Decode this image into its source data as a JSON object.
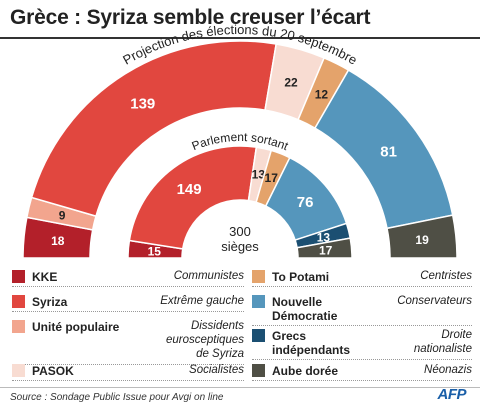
{
  "title": "Grèce : Syriza semble creuser l’écart",
  "source": "Source : Sondage Public Issue pour Avgi on line",
  "logo": "AFP",
  "colors": {
    "KKE": "#b3202a",
    "Syriza": "#e1473f",
    "Unite": "#f2a58e",
    "PASOK": "#f8dcd2",
    "ToPotami": "#e4a36b",
    "ND": "#5596bc",
    "Grecs": "#1b4f72",
    "Aube": "#4f4f45"
  },
  "chart_data": [
    {
      "type": "parliament",
      "title": "Projection des élections du 20 septembre",
      "seats_total": 300,
      "series": [
        {
          "party": "KKE",
          "value": 18,
          "color_key": "KKE"
        },
        {
          "party": "Unité populaire",
          "value": 9,
          "color_key": "Unite"
        },
        {
          "party": "Syriza",
          "value": 139,
          "color_key": "Syriza"
        },
        {
          "party": "PASOK",
          "value": 22,
          "color_key": "PASOK"
        },
        {
          "party": "To Potami",
          "value": 12,
          "color_key": "ToPotami"
        },
        {
          "party": "Nouvelle Démocratie",
          "value": 81,
          "color_key": "ND"
        },
        {
          "party": "Aube dorée",
          "value": 19,
          "color_key": "Aube"
        }
      ]
    },
    {
      "type": "parliament",
      "title": "Parlement sortant",
      "seats_total": 300,
      "center_value": "300",
      "center_label": "sièges",
      "series": [
        {
          "party": "KKE",
          "value": 15,
          "color_key": "KKE"
        },
        {
          "party": "Syriza",
          "value": 149,
          "color_key": "Syriza"
        },
        {
          "party": "PASOK",
          "value": 13,
          "color_key": "PASOK"
        },
        {
          "party": "To Potami",
          "value": 17,
          "color_key": "ToPotami"
        },
        {
          "party": "Nouvelle Démocratie",
          "value": 76,
          "color_key": "ND"
        },
        {
          "party": "Grecs indépendants",
          "value": 13,
          "color_key": "Grecs"
        },
        {
          "party": "Aube dorée",
          "value": 17,
          "color_key": "Aube"
        }
      ]
    }
  ],
  "legend": [
    {
      "party": "KKE",
      "desc": "Communistes",
      "color_key": "KKE"
    },
    {
      "party": "Syriza",
      "desc": "Extrême gauche",
      "color_key": "Syriza"
    },
    {
      "party": "Unité populaire",
      "desc": "Dissidents eurosceptiques de Syriza",
      "color_key": "Unite"
    },
    {
      "party": "PASOK",
      "desc": "Socialistes",
      "color_key": "PASOK"
    },
    {
      "party": "To Potami",
      "desc": "Centristes",
      "color_key": "ToPotami"
    },
    {
      "party": "Nouvelle Démocratie",
      "desc": "Conservateurs",
      "color_key": "ND"
    },
    {
      "party": "Grecs indépendants",
      "desc": "Droite nationaliste",
      "color_key": "Grecs"
    },
    {
      "party": "Aube dorée",
      "desc": "Néonazis",
      "color_key": "Aube"
    }
  ]
}
